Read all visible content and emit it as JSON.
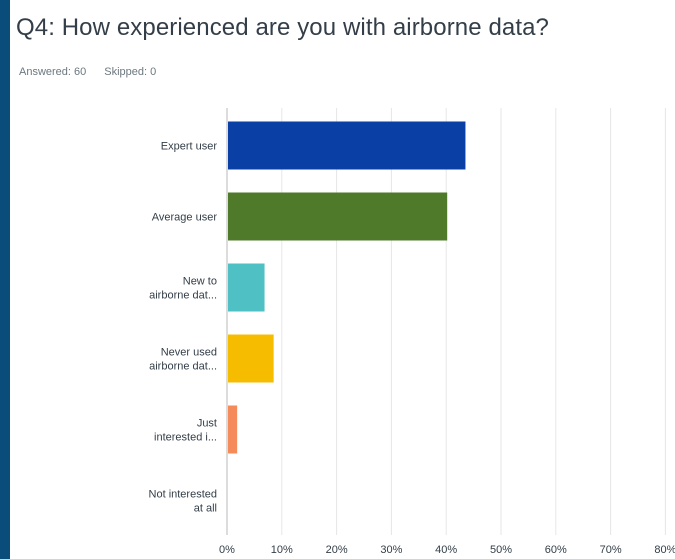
{
  "question": {
    "title": "Q4: How experienced are you with airborne data?",
    "answered_label": "Answered: 60",
    "skipped_label": "Skipped: 0"
  },
  "chart_data": {
    "type": "bar",
    "orientation": "horizontal",
    "categories": [
      [
        "Expert user"
      ],
      [
        "Average user"
      ],
      [
        "New to",
        "airborne dat..."
      ],
      [
        "Never used",
        "airborne dat..."
      ],
      [
        "Just",
        "interested i..."
      ],
      [
        "Not interested",
        "at all"
      ]
    ],
    "values": [
      43.33,
      40.0,
      6.67,
      8.33,
      1.67,
      0
    ],
    "colors": [
      "#0a3fa6",
      "#4e7a2a",
      "#4fc1c4",
      "#f5bc00",
      "#f58b5a",
      "#9e9e9e"
    ],
    "x_ticks": [
      "0%",
      "10%",
      "20%",
      "30%",
      "40%",
      "50%",
      "60%",
      "70%",
      "80%"
    ],
    "xlim": [
      0,
      80
    ],
    "grid": true
  }
}
